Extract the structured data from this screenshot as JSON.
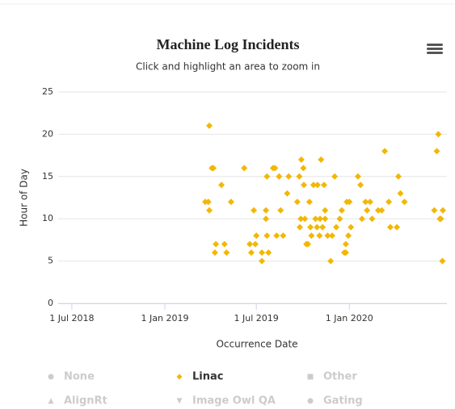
{
  "chart_data": {
    "type": "scatter",
    "title": "Machine Log Incidents",
    "subtitle": "Click and highlight an area to zoom in",
    "x_label": "Occurrence Date",
    "y_label": "Hour of Day",
    "xlim": [
      "2018-06-04",
      "2020-07-12"
    ],
    "xticks": [
      {
        "value": "2018-07-01",
        "label": "1 Jul 2018"
      },
      {
        "value": "2019-01-01",
        "label": "1 Jan 2019"
      },
      {
        "value": "2019-07-01",
        "label": "1 Jul 2019"
      },
      {
        "value": "2020-01-01",
        "label": "1 Jan 2020"
      }
    ],
    "ylim": [
      0,
      25
    ],
    "yticks": [
      0,
      5,
      10,
      15,
      20,
      25
    ],
    "grid": true,
    "legend": "bottom",
    "series": [
      {
        "name": "None",
        "symbol": "circle",
        "visible": false,
        "x": [],
        "values": []
      },
      {
        "name": "Linac",
        "symbol": "diamond",
        "visible": true,
        "color": "#f2b705",
        "x": [
          "2019-03-22",
          "2019-03-28",
          "2019-03-30",
          "2019-03-30",
          "2019-04-04",
          "2019-04-07",
          "2019-04-10",
          "2019-04-12",
          "2019-04-23",
          "2019-04-29",
          "2019-05-03",
          "2019-05-12",
          "2019-06-07",
          "2019-06-18",
          "2019-06-21",
          "2019-06-26",
          "2019-06-29",
          "2019-07-01",
          "2019-07-12",
          "2019-07-12",
          "2019-07-20",
          "2019-07-20",
          "2019-07-22",
          "2019-07-22",
          "2019-07-25",
          "2019-08-03",
          "2019-08-07",
          "2019-08-10",
          "2019-08-15",
          "2019-08-18",
          "2019-08-23",
          "2019-08-31",
          "2019-09-03",
          "2019-09-20",
          "2019-09-24",
          "2019-09-25",
          "2019-09-27",
          "2019-09-28",
          "2019-10-02",
          "2019-10-03",
          "2019-10-05",
          "2019-10-08",
          "2019-10-11",
          "2019-10-14",
          "2019-10-16",
          "2019-10-18",
          "2019-10-22",
          "2019-10-26",
          "2019-10-29",
          "2019-10-30",
          "2019-11-03",
          "2019-11-04",
          "2019-11-06",
          "2019-11-09",
          "2019-11-12",
          "2019-11-14",
          "2019-11-14",
          "2019-11-19",
          "2019-11-25",
          "2019-11-28",
          "2019-12-03",
          "2019-12-06",
          "2019-12-13",
          "2019-12-17",
          "2019-12-22",
          "2019-12-25",
          "2019-12-25",
          "2019-12-27",
          "2019-12-30",
          "2020-01-01",
          "2020-01-04",
          "2020-01-18",
          "2020-01-23",
          "2020-01-26",
          "2020-02-02",
          "2020-02-05",
          "2020-02-11",
          "2020-02-15",
          "2020-02-27",
          "2020-03-05",
          "2020-03-11",
          "2020-03-19",
          "2020-03-22",
          "2020-04-04",
          "2020-04-07",
          "2020-04-11",
          "2020-04-19",
          "2020-06-17",
          "2020-06-22",
          "2020-06-25",
          "2020-06-28",
          "2020-06-30",
          "2020-07-03",
          "2020-07-04"
        ],
        "values": [
          12,
          12,
          11,
          21,
          16,
          16,
          6,
          7,
          14,
          7,
          6,
          12,
          16,
          7,
          6,
          11,
          7,
          8,
          6,
          5,
          11,
          10,
          8,
          15,
          6,
          16,
          16,
          8,
          15,
          11,
          8,
          13,
          15,
          12,
          15,
          9,
          10,
          17,
          16,
          14,
          10,
          7,
          7,
          12,
          9,
          8,
          14,
          10,
          9,
          14,
          8,
          10,
          17,
          9,
          14,
          11,
          10,
          8,
          5,
          8,
          15,
          9,
          10,
          11,
          6,
          7,
          6,
          12,
          8,
          12,
          9,
          15,
          14,
          10,
          12,
          11,
          12,
          10,
          11,
          11,
          18,
          12,
          9,
          9,
          15,
          13,
          12,
          11,
          18,
          20,
          10,
          10,
          5,
          11
        ]
      },
      {
        "name": "Other",
        "symbol": "square",
        "visible": false,
        "x": [],
        "values": []
      },
      {
        "name": "AlignRt",
        "symbol": "triangle",
        "visible": false,
        "x": [],
        "values": []
      },
      {
        "name": "Image Owl QA",
        "symbol": "triangle-down",
        "visible": false,
        "x": [],
        "values": []
      },
      {
        "name": "Gating",
        "symbol": "circle",
        "visible": false,
        "x": [],
        "values": []
      }
    ]
  }
}
